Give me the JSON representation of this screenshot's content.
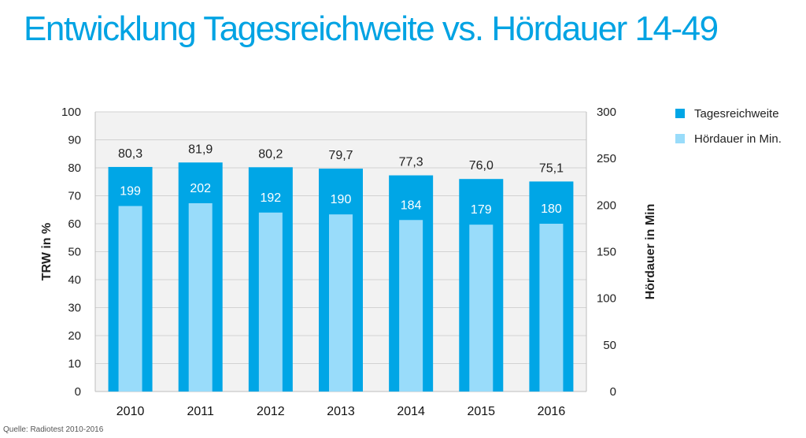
{
  "title": "Entwicklung Tagesreichweite vs. Hördauer 14-49",
  "source": "Quelle: Radiotest 2010-2016",
  "colors": {
    "title": "#00a3e3",
    "trw": "#00a6e6",
    "hoerdauer": "#99dcfa",
    "plot_bg": "#f2f2f2",
    "grid": "#d2d2d2"
  },
  "chart_data": {
    "type": "bar",
    "title": "Entwicklung Tagesreichweite vs. Hördauer 14-49",
    "categories": [
      "2010",
      "2011",
      "2012",
      "2013",
      "2014",
      "2015",
      "2016"
    ],
    "series": [
      {
        "name": "Tagesreichweite",
        "axis": "left",
        "values": [
          80.3,
          81.9,
          80.2,
          79.7,
          77.3,
          76.0,
          75.1
        ],
        "labels": [
          "80,3",
          "81,9",
          "80,2",
          "79,7",
          "77,3",
          "76,0",
          "75,1"
        ]
      },
      {
        "name": "Hördauer in Min.",
        "axis": "right",
        "values": [
          199,
          202,
          192,
          190,
          184,
          179,
          180
        ],
        "labels": [
          "199",
          "202",
          "192",
          "190",
          "184",
          "179",
          "180"
        ]
      }
    ],
    "ylabel": "TRW in %",
    "ylabel_right": "Hördauer in Min",
    "ylim": [
      0,
      100
    ],
    "ylim_right": [
      0,
      300
    ],
    "yticks": [
      "0",
      "10",
      "20",
      "30",
      "40",
      "50",
      "60",
      "70",
      "80",
      "90",
      "100"
    ],
    "yticks_right": [
      "0",
      "50",
      "100",
      "150",
      "200",
      "250",
      "300"
    ],
    "grid": true,
    "legend": "right"
  }
}
